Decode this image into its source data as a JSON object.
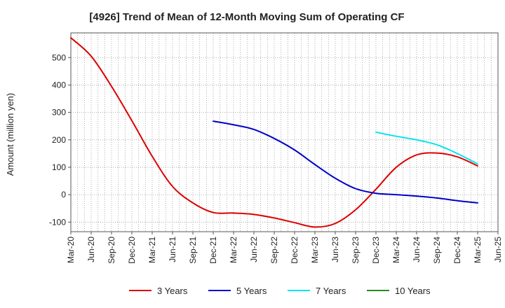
{
  "chart_data": {
    "type": "line",
    "title": "[4926]  Trend of Mean of 12-Month Moving Sum of Operating CF",
    "xlabel": "",
    "ylabel": "Amount (million yen)",
    "ylim": [
      -135,
      590
    ],
    "yticks": [
      -100,
      0,
      100,
      200,
      300,
      400,
      500
    ],
    "x_range_months": [
      0,
      63
    ],
    "x_tick_labels": [
      "Mar-20",
      "Jun-20",
      "Sep-20",
      "Dec-20",
      "Mar-21",
      "Jun-21",
      "Sep-21",
      "Dec-21",
      "Mar-22",
      "Jun-22",
      "Sep-22",
      "Dec-22",
      "Mar-23",
      "Jun-23",
      "Sep-23",
      "Dec-23",
      "Mar-24",
      "Jun-24",
      "Sep-24",
      "Dec-24",
      "Mar-25",
      "Jun-25"
    ],
    "grid": true,
    "legend_position": "bottom",
    "series": [
      {
        "name": "3 Years",
        "color": "#dd0000",
        "x_months": [
          0,
          3,
          6,
          9,
          12,
          15,
          18,
          21,
          24,
          27,
          30,
          33,
          36,
          39,
          42,
          45,
          48,
          51,
          54,
          57,
          60
        ],
        "values": [
          572,
          505,
          395,
          270,
          140,
          30,
          -30,
          -65,
          -67,
          -72,
          -85,
          -102,
          -118,
          -105,
          -55,
          20,
          100,
          145,
          152,
          138,
          105
        ]
      },
      {
        "name": "5 Years",
        "color": "#0000cc",
        "x_months": [
          21,
          24,
          27,
          30,
          33,
          36,
          39,
          42,
          45,
          48,
          51,
          54,
          57,
          60
        ],
        "values": [
          268,
          255,
          238,
          205,
          163,
          110,
          60,
          22,
          5,
          0,
          -5,
          -12,
          -22,
          -30
        ]
      },
      {
        "name": "7 Years",
        "color": "#00e5ee",
        "x_months": [
          45,
          48,
          51,
          54,
          57,
          60
        ],
        "values": [
          228,
          213,
          200,
          182,
          150,
          112
        ]
      },
      {
        "name": "10 Years",
        "color": "#228b22",
        "x_months": [],
        "values": []
      }
    ]
  }
}
